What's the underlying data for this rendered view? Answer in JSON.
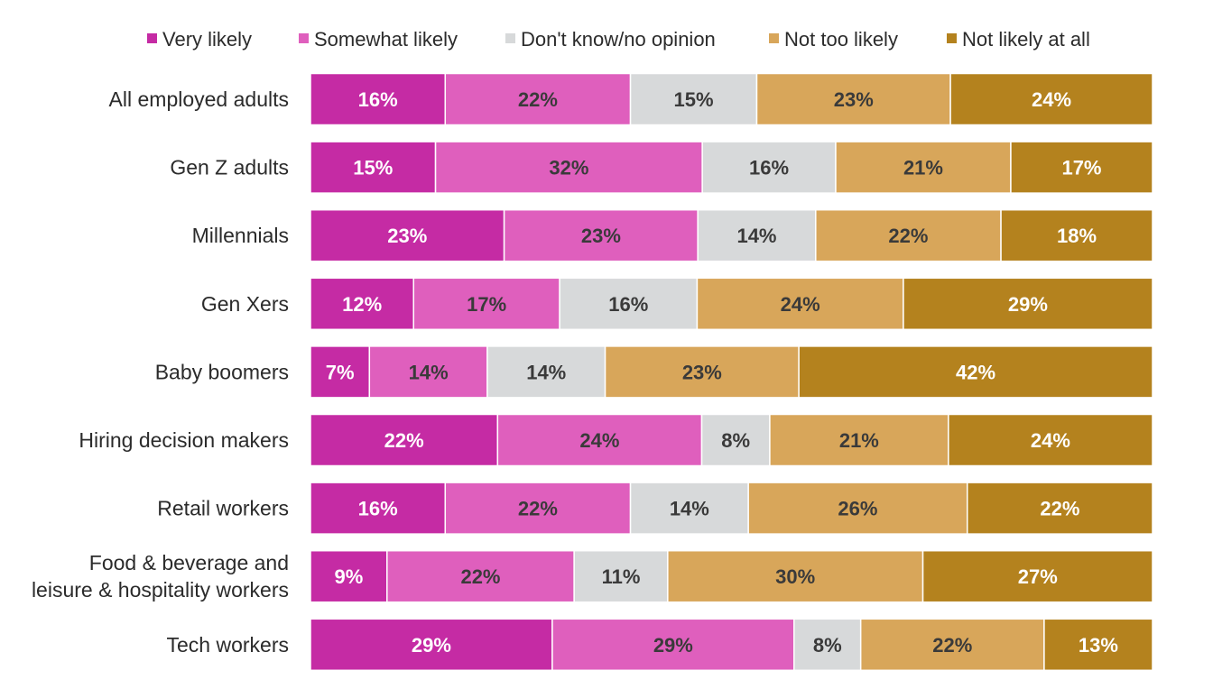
{
  "chart_data": {
    "type": "bar",
    "orientation": "horizontal",
    "stacked": true,
    "value_unit": "%",
    "xlim": [
      0,
      100
    ],
    "grid": false,
    "legend_position": "top",
    "categories": [
      [
        "All employed adults"
      ],
      [
        "Gen Z adults"
      ],
      [
        "Millennials"
      ],
      [
        "Gen Xers"
      ],
      [
        "Baby boomers"
      ],
      [
        "Hiring decision makers"
      ],
      [
        "Retail workers"
      ],
      [
        "Food & beverage and",
        "leisure & hospitality workers"
      ],
      [
        "Tech workers"
      ]
    ],
    "series": [
      {
        "name": "Very likely",
        "color": "#c52ba4",
        "label_color": "#ffffff",
        "values": [
          16,
          15,
          23,
          12,
          7,
          22,
          16,
          9,
          29
        ]
      },
      {
        "name": "Somewhat likely",
        "color": "#df5fbd",
        "label_color": "#3a3a3a",
        "values": [
          22,
          32,
          23,
          17,
          14,
          24,
          22,
          22,
          29
        ]
      },
      {
        "name": "Don't know/no opinion",
        "color": "#d7d9da",
        "label_color": "#3a3a3a",
        "values": [
          15,
          16,
          14,
          16,
          14,
          8,
          14,
          11,
          8
        ]
      },
      {
        "name": "Not too likely",
        "color": "#d8a65a",
        "label_color": "#3a3a3a",
        "values": [
          23,
          21,
          22,
          24,
          23,
          21,
          26,
          30,
          22
        ]
      },
      {
        "name": "Not likely at all",
        "color": "#b4821e",
        "label_color": "#ffffff",
        "values": [
          24,
          17,
          18,
          29,
          42,
          24,
          22,
          27,
          13
        ]
      }
    ]
  }
}
